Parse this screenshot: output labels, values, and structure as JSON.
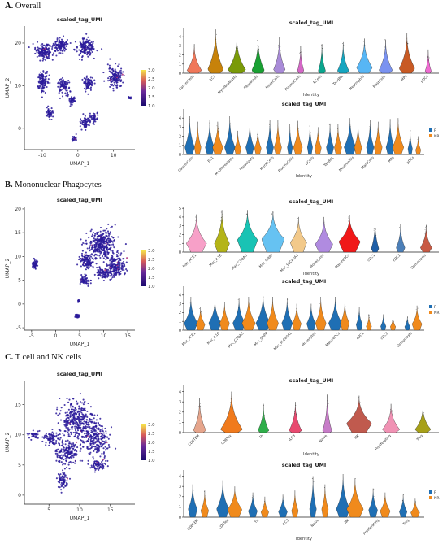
{
  "chart_data": [
    {
      "id": "A",
      "heading_letter": "A.",
      "heading_text": "Overall",
      "umap": {
        "type": "scatter",
        "title": "scaled_tag_UMI",
        "xlabel": "UMAP_1",
        "ylabel": "UMAP_2",
        "xticks": [
          "-10",
          "0",
          "10"
        ],
        "xtick_values": [
          -10,
          0,
          10
        ],
        "yticks": [
          "0",
          "10",
          "20"
        ],
        "ytick_values": [
          0,
          10,
          20
        ],
        "xlim": [
          -15,
          16
        ],
        "ylim": [
          -5,
          24
        ],
        "colorbar_ticks": [
          "3.0",
          "2.5",
          "2.0",
          "1.5",
          "1.0"
        ],
        "clusters": [
          {
            "cx": -9.5,
            "cy": 18,
            "sx": 2.2,
            "sy": 1.6,
            "n": 160
          },
          {
            "cx": -5,
            "cy": 19.5,
            "sx": 1.7,
            "sy": 1.4,
            "n": 110
          },
          {
            "cx": 2,
            "cy": 19,
            "sx": 2.6,
            "sy": 1.8,
            "n": 170
          },
          {
            "cx": -10,
            "cy": 11,
            "sx": 1.4,
            "sy": 2.3,
            "n": 120
          },
          {
            "cx": -4,
            "cy": 10,
            "sx": 1.6,
            "sy": 1.6,
            "n": 90
          },
          {
            "cx": 3,
            "cy": 10.5,
            "sx": 1.4,
            "sy": 1.4,
            "n": 80
          },
          {
            "cx": 10.5,
            "cy": 12,
            "sx": 1.8,
            "sy": 2.2,
            "n": 140
          },
          {
            "cx": -1.5,
            "cy": 6.5,
            "sx": 0.9,
            "sy": 0.8,
            "n": 40
          },
          {
            "cx": -8,
            "cy": 3.5,
            "sx": 1.1,
            "sy": 1.1,
            "n": 50
          },
          {
            "cx": 2.2,
            "cy": 1.5,
            "sx": 1.1,
            "sy": 1.4,
            "n": 60
          },
          {
            "cx": 4.5,
            "cy": 2.5,
            "sx": 0.9,
            "sy": 1.1,
            "n": 50
          },
          {
            "cx": -1,
            "cy": -2.5,
            "sx": 0.7,
            "sy": 0.6,
            "n": 25
          },
          {
            "cx": 14.5,
            "cy": 7.2,
            "sx": 0.4,
            "sy": 0.3,
            "n": 10
          }
        ]
      },
      "violin_top": {
        "type": "violin",
        "title": "scaled_tag_UMI",
        "xlabel": "Identity",
        "ylabel": "",
        "yticks": [
          "0",
          "1",
          "2",
          "3",
          "4"
        ],
        "ylim": [
          0,
          5
        ],
        "categories": [
          "CancerCells",
          "EC1",
          "Myofibroblasts",
          "Fibroblasts",
          "MuralCells",
          "PlasmaCells",
          "BCells",
          "TandNK",
          "Neutrophils",
          "MastCells",
          "MPs",
          "pDCs"
        ],
        "colors": [
          "#f0785a",
          "#c7820a",
          "#7a9a08",
          "#1aa033",
          "#a98bd8",
          "#d567c7",
          "#0aa68e",
          "#16a6c0",
          "#57b6f5",
          "#7a92f0",
          "#c85a24",
          "#f06bd2"
        ],
        "max": [
          3.2,
          4.8,
          4.0,
          3.8,
          4.0,
          3.0,
          3.2,
          3.4,
          3.8,
          3.7,
          4.4,
          2.6
        ],
        "width": [
          0.7,
          0.75,
          0.85,
          0.6,
          0.55,
          0.3,
          0.35,
          0.55,
          0.75,
          0.65,
          0.75,
          0.3
        ],
        "mode": [
          0.3,
          0.4,
          0.35,
          0.3,
          0.4,
          0.3,
          0.25,
          0.25,
          0.6,
          0.3,
          0.5,
          0.2
        ]
      },
      "violin_bottom": {
        "type": "violin",
        "title": "scaled_tag_UMI",
        "xlabel": "Identity",
        "ylabel": "",
        "yticks": [
          "0",
          "1",
          "2",
          "3",
          "4"
        ],
        "ylim": [
          0,
          5
        ],
        "categories": [
          "CancerCells",
          "EC1",
          "Myofibroblasts",
          "Fibroblasts",
          "MuralCells",
          "PlasmaCells",
          "BCells",
          "TandNK",
          "Neutrophils",
          "MastCells",
          "MPs",
          "pDCs"
        ],
        "legend": [
          "R",
          "NR"
        ],
        "legend_colors": [
          "#1f6fb4",
          "#f08a1c"
        ],
        "max_r": [
          4.2,
          3.8,
          4.2,
          3.6,
          3.8,
          3.3,
          3.5,
          3.4,
          4.0,
          3.8,
          3.9,
          2.6
        ],
        "max_nr": [
          3.6,
          3.6,
          2.6,
          2.8,
          3.8,
          3.7,
          3.0,
          3.3,
          3.4,
          3.6,
          4.0,
          2.0
        ],
        "width_r": [
          0.65,
          0.6,
          0.7,
          0.55,
          0.5,
          0.35,
          0.35,
          0.5,
          0.8,
          0.5,
          0.55,
          0.3
        ],
        "width_nr": [
          0.45,
          0.7,
          0.45,
          0.45,
          0.5,
          0.6,
          0.45,
          0.5,
          0.5,
          0.55,
          0.75,
          0.35
        ]
      }
    },
    {
      "id": "B",
      "heading_letter": "B.",
      "heading_text": "Mononuclear Phagocytes",
      "umap": {
        "type": "scatter",
        "title": "scaled_tag_UMI",
        "xlabel": "UMAP_1",
        "ylabel": "UMAP_2",
        "xticks": [
          "-5",
          "0",
          "5",
          "10",
          "15"
        ],
        "xtick_values": [
          -5,
          0,
          5,
          10,
          15
        ],
        "yticks": [
          "-5",
          "0",
          "5",
          "10",
          "15",
          "20"
        ],
        "ytick_values": [
          -5,
          0,
          5,
          10,
          15,
          20
        ],
        "xlim": [
          -6.5,
          16.5
        ],
        "ylim": [
          -5.5,
          20.5
        ],
        "colorbar_ticks": [
          "3.0",
          "2.5",
          "2.0",
          "1.5",
          "1.0"
        ],
        "clusters": [
          {
            "cx": 9.5,
            "cy": 12.5,
            "sx": 2.6,
            "sy": 2.6,
            "n": 340
          },
          {
            "cx": 12.5,
            "cy": 8,
            "sx": 1.8,
            "sy": 2.2,
            "n": 200
          },
          {
            "cx": 6.5,
            "cy": 9,
            "sx": 1.4,
            "sy": 1.6,
            "n": 120
          },
          {
            "cx": 10,
            "cy": 6.5,
            "sx": 1.4,
            "sy": 1.0,
            "n": 90
          },
          {
            "cx": 6,
            "cy": 5,
            "sx": 0.9,
            "sy": 1.0,
            "n": 60
          },
          {
            "cx": -4.3,
            "cy": 8.3,
            "sx": 0.5,
            "sy": 0.8,
            "n": 55
          },
          {
            "cx": 4.5,
            "cy": -2.5,
            "sx": 0.3,
            "sy": 0.4,
            "n": 25
          },
          {
            "cx": 4.8,
            "cy": 0.6,
            "sx": 0.2,
            "sy": 0.3,
            "n": 12
          }
        ]
      },
      "violin_top": {
        "type": "violin",
        "title": "scaled_tag_UMI",
        "xlabel": "Identity",
        "ylabel": "",
        "yticks": [
          "0",
          "1",
          "2",
          "3",
          "4",
          "5"
        ],
        "ylim": [
          0,
          5.2
        ],
        "categories": [
          "Mac_ACE1",
          "Mac_IL1B",
          "Mac_C1QAG",
          "Mac_SMPP",
          "Mac_SLC40A1",
          "Monocytes",
          "MatureDCs",
          "cDC1",
          "cDC2",
          "Osteoclasts"
        ],
        "colors": [
          "#f7a0c8",
          "#b4b418",
          "#19c3b4",
          "#66c2f2",
          "#f2c98a",
          "#b08be0",
          "#f01818",
          "#1f5fa8",
          "#4c7fb8",
          "#c85a44"
        ],
        "max": [
          4.3,
          4.8,
          4.8,
          4.7,
          4.0,
          4.0,
          4.2,
          3.6,
          3.2,
          3.1
        ],
        "width": [
          0.8,
          0.6,
          0.8,
          0.9,
          0.65,
          0.7,
          0.85,
          0.3,
          0.35,
          0.45
        ],
        "mode": [
          1.0,
          1.0,
          1.4,
          1.5,
          1.1,
          0.9,
          1.2,
          0.4,
          0.5,
          0.5
        ]
      },
      "violin_bottom": {
        "type": "violin",
        "title": "scaled_tag_UMI",
        "xlabel": "",
        "ylabel": "",
        "yticks": [
          "0",
          "1",
          "2",
          "3",
          "4"
        ],
        "ylim": [
          0,
          5
        ],
        "categories": [
          "Mac_ACE1",
          "Mac_IL1B",
          "Mac_C1QAG",
          "Mac_SMPP",
          "Mac_SLC40A1",
          "Monocytes",
          "MatureDCs",
          "cDC1",
          "cDC2",
          "Osteoclasts"
        ],
        "legend": [
          "R",
          "NR"
        ],
        "legend_colors": [
          "#1f6fb4",
          "#f08a1c"
        ],
        "max_r": [
          3.8,
          3.6,
          3.6,
          4.2,
          3.6,
          3.0,
          3.8,
          2.6,
          1.8,
          1.6
        ],
        "max_nr": [
          2.6,
          3.2,
          3.8,
          3.8,
          3.0,
          3.8,
          3.4,
          1.8,
          1.6,
          2.8
        ],
        "width_r": [
          0.75,
          0.7,
          0.7,
          0.8,
          0.6,
          0.5,
          0.75,
          0.35,
          0.3,
          0.3
        ],
        "width_nr": [
          0.5,
          0.55,
          0.75,
          0.65,
          0.5,
          0.6,
          0.5,
          0.3,
          0.3,
          0.55
        ]
      }
    },
    {
      "id": "C",
      "heading_letter": "C.",
      "heading_text": "T cell and NK cells",
      "umap": {
        "type": "scatter",
        "title": "scaled_tag_UMI",
        "xlabel": "UMAP_1",
        "ylabel": "UMAP_2",
        "xticks": [
          "5",
          "10",
          "15"
        ],
        "xtick_values": [
          5,
          10,
          15
        ],
        "yticks": [
          "0",
          "5",
          "10",
          "15"
        ],
        "ytick_values": [
          0,
          5,
          10,
          15
        ],
        "xlim": [
          1,
          19
        ],
        "ylim": [
          -1.5,
          19
        ],
        "colorbar_ticks": [
          "3.0",
          "2.5",
          "2.0",
          "1.5",
          "1.0"
        ],
        "clusters": [
          {
            "cx": 9.5,
            "cy": 12.5,
            "sx": 2.4,
            "sy": 2.8,
            "n": 330
          },
          {
            "cx": 12.5,
            "cy": 9.5,
            "sx": 2.0,
            "sy": 2.4,
            "n": 250
          },
          {
            "cx": 8,
            "cy": 7,
            "sx": 1.6,
            "sy": 1.8,
            "n": 170
          },
          {
            "cx": 5.5,
            "cy": 9.5,
            "sx": 1.1,
            "sy": 1.0,
            "n": 80
          },
          {
            "cx": 7.3,
            "cy": 2.5,
            "sx": 0.8,
            "sy": 1.4,
            "n": 80
          },
          {
            "cx": 2.5,
            "cy": 10,
            "sx": 0.7,
            "sy": 0.5,
            "n": 35
          },
          {
            "cx": 13,
            "cy": 5,
            "sx": 1.2,
            "sy": 0.8,
            "n": 70
          }
        ]
      },
      "violin_top": {
        "type": "violin",
        "title": "scaled_tag_UMI",
        "xlabel": "Identity",
        "ylabel": "",
        "yticks": [
          "0",
          "1",
          "2",
          "3",
          "4"
        ],
        "ylim": [
          0,
          4.6
        ],
        "categories": [
          "CD8TEM",
          "CD8Tex",
          "Th",
          "ILC3",
          "Naive",
          "NK",
          "Proliferating",
          "Treg"
        ],
        "colors": [
          "#e6a58c",
          "#f07a1c",
          "#2fae4a",
          "#e84a70",
          "#c77cc8",
          "#c05a4e",
          "#f092b4",
          "#a7a018"
        ],
        "max": [
          3.4,
          4.0,
          2.8,
          3.0,
          3.7,
          3.6,
          2.8,
          2.6
        ],
        "width": [
          0.4,
          0.7,
          0.35,
          0.4,
          0.3,
          0.8,
          0.55,
          0.5
        ],
        "mode": [
          0.2,
          0.3,
          0.2,
          0.2,
          0.15,
          0.9,
          0.3,
          0.3
        ]
      },
      "violin_bottom": {
        "type": "violin",
        "title": "scaled_tag_UMI",
        "xlabel": "Identity",
        "ylabel": "",
        "yticks": [
          "0",
          "1",
          "2",
          "3",
          "4"
        ],
        "ylim": [
          0,
          4.6
        ],
        "categories": [
          "CD8TEM",
          "CD8Tex",
          "Th",
          "ILC3",
          "Naive",
          "NK",
          "Proliferating",
          "Treg"
        ],
        "legend": [
          "R",
          "NR"
        ],
        "legend_colors": [
          "#1f6fb4",
          "#f08a1c"
        ],
        "max_r": [
          3.2,
          3.6,
          2.4,
          2.2,
          4.0,
          4.2,
          2.8,
          2.2
        ],
        "max_nr": [
          2.6,
          3.0,
          2.0,
          2.6,
          3.2,
          3.8,
          2.4,
          1.8
        ],
        "width_r": [
          0.4,
          0.55,
          0.4,
          0.4,
          0.3,
          0.6,
          0.4,
          0.35
        ],
        "width_nr": [
          0.35,
          0.65,
          0.35,
          0.3,
          0.3,
          0.75,
          0.45,
          0.4
        ]
      }
    }
  ]
}
